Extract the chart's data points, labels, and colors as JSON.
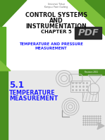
{
  "bg_color": "#ffffff",
  "green_dark": "#4a8f1f",
  "green_light": "#7dbf3a",
  "green_mid": "#5aaa25",
  "subtitle_color": "#2222ff",
  "section_color": "#2222ff",
  "title_line1": "CONTROL SYSTEMS",
  "title_line2": "AND",
  "title_line3": "INSTRUMENTATION",
  "chapter": "CHAPTER 5",
  "subtitle1": "TEMPERATURE AND PRESSURE",
  "subtitle2": "MEASUREMENT",
  "section_num": "5.1",
  "section_title1": "TEMPERATURE",
  "section_title2": "MEASUREMENT",
  "revision": "Revision 2021",
  "small_text1": "Universiti Tekun",
  "small_text2": "Kampus Pasir Gudang",
  "pdf_label": "PDF",
  "gray_shape": "#bbbbbb",
  "gray_dark": "#999999"
}
